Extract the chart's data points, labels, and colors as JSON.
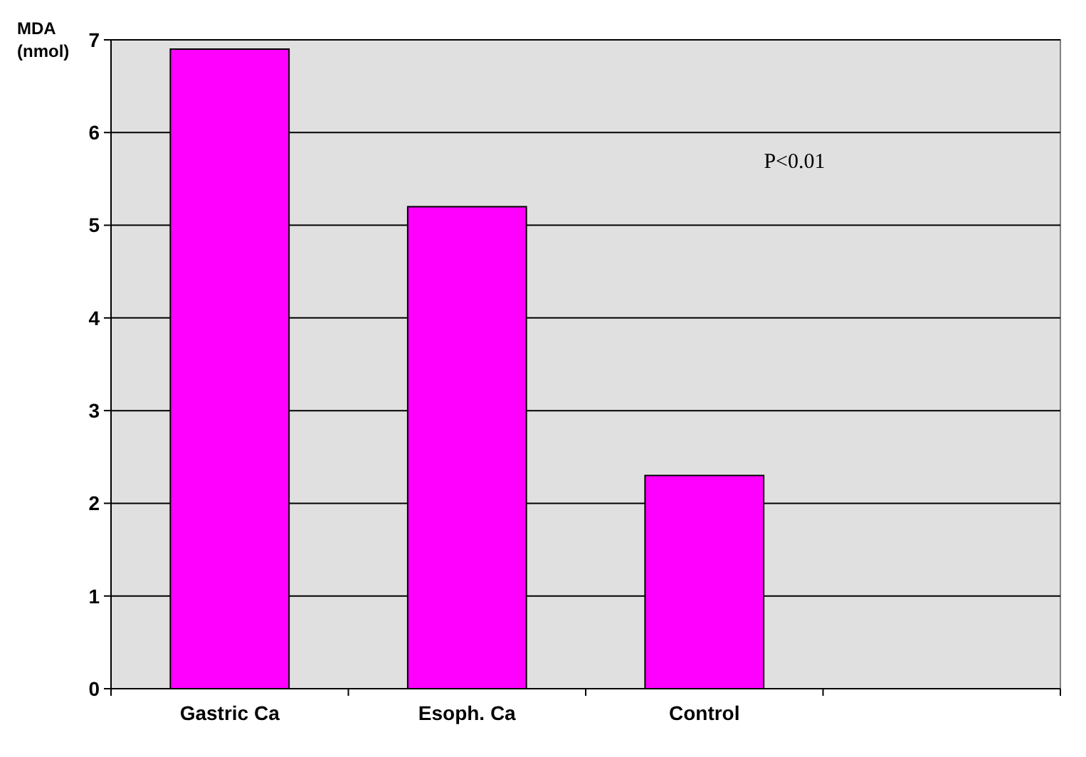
{
  "chart_data": {
    "type": "bar",
    "ylabel": "MDA (nmol)",
    "categories": [
      "Gastric Ca",
      "Esoph. Ca",
      "Control",
      null
    ],
    "values": [
      6.9,
      5.2,
      2.3,
      null
    ],
    "color": "#ff00ff",
    "ylim": [
      0,
      7
    ],
    "yticks": [
      0,
      1,
      2,
      3,
      4,
      5,
      6,
      7
    ],
    "grid": "y",
    "annotations": [
      "P<0.01"
    ]
  }
}
